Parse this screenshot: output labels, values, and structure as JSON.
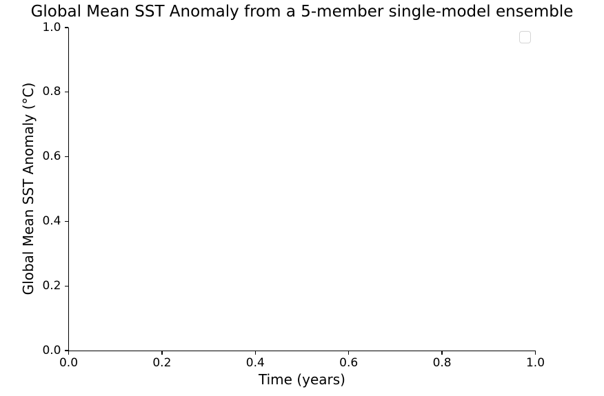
{
  "chart_data": {
    "type": "line",
    "title": "Global Mean SST Anomaly from a 5-member single-model ensemble",
    "xlabel": "Time (years)",
    "ylabel": "Global Mean SST Anomaly (°C)",
    "xlim": [
      0.0,
      1.0
    ],
    "ylim": [
      0.0,
      1.0
    ],
    "xticks": [
      "0.0",
      "0.2",
      "0.4",
      "0.6",
      "0.8",
      "1.0"
    ],
    "yticks": [
      "0.0",
      "0.2",
      "0.4",
      "0.6",
      "0.8",
      "1.0"
    ],
    "series": [],
    "legend": {
      "visible": true,
      "entries": [],
      "position": "upper-right"
    },
    "grid": false,
    "spines_visible": [
      "left",
      "bottom"
    ]
  },
  "colors": {
    "background": "#ffffff",
    "text": "#000000",
    "spine": "#000000",
    "legend_border": "#d4d4d4",
    "legend_background": "#ffffff"
  }
}
